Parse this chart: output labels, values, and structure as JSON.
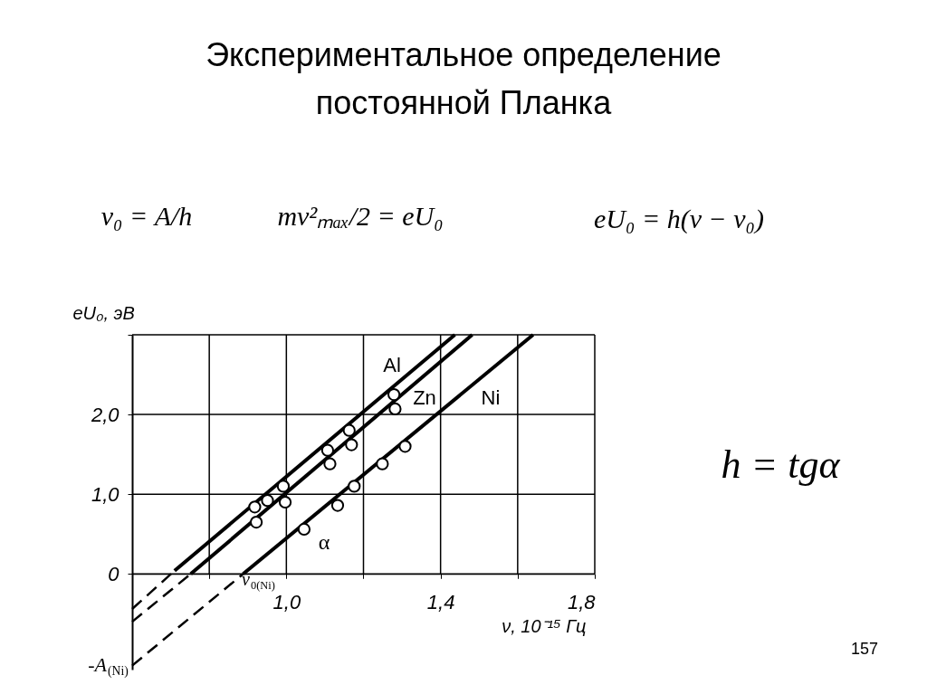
{
  "chart_data": {
    "type": "line",
    "title": "Экспериментальное определение постоянной Планка",
    "xlabel": "ν, 10⁻¹⁵ Гц",
    "ylabel": "eU₀, эВ",
    "xlim": [
      0.6,
      1.8
    ],
    "ylim": [
      -1.2,
      3.0
    ],
    "xticks": [
      {
        "value": 0.8,
        "label": null
      },
      {
        "value": 1.0,
        "label": "1,0"
      },
      {
        "value": 1.2,
        "label": null
      },
      {
        "value": 1.4,
        "label": "1,4"
      },
      {
        "value": 1.6,
        "label": null
      },
      {
        "value": 1.8,
        "label": "1,8"
      }
    ],
    "yticks": [
      {
        "value": 0,
        "label": "0"
      },
      {
        "value": 1.0,
        "label": "1,0"
      },
      {
        "value": 2.0,
        "label": "2,0"
      },
      {
        "value": 3.0,
        "label": null
      }
    ],
    "grid": true,
    "series": [
      {
        "color": "#000000",
        "line_style": "solid",
        "x": [
          0.71,
          1.437
        ],
        "values": [
          0.04,
          3.0
        ]
      },
      {
        "color": "#000000",
        "line_style": "dashed",
        "x": [
          0.6,
          0.71
        ],
        "values": [
          -0.44,
          0.04
        ]
      },
      {
        "color": "#000000",
        "line_style": "solid",
        "x": [
          0.752,
          1.482
        ],
        "values": [
          0.0,
          3.0
        ]
      },
      {
        "color": "#000000",
        "line_style": "dashed",
        "x": [
          0.6,
          0.752
        ],
        "values": [
          -0.6,
          0.0
        ]
      },
      {
        "color": "#000000",
        "line_style": "solid",
        "x": [
          0.888,
          1.64
        ],
        "values": [
          0.0,
          3.0
        ]
      },
      {
        "color": "#000000",
        "line_style": "dashed",
        "x": [
          0.6,
          0.888
        ],
        "values": [
          -1.15,
          0.0
        ]
      },
      {
        "type": "scatter",
        "color": "#000000",
        "marker": "circle",
        "x": [
          0.918,
          0.951,
          0.992,
          1.107,
          1.163,
          1.279
        ],
        "values": [
          0.84,
          0.92,
          1.1,
          1.55,
          1.8,
          2.25
        ]
      },
      {
        "type": "scatter",
        "color": "#000000",
        "marker": "circle",
        "x": [
          0.922,
          0.997,
          1.113,
          1.169,
          1.282
        ],
        "values": [
          0.65,
          0.9,
          1.38,
          1.62,
          2.07
        ]
      },
      {
        "type": "scatter",
        "color": "#000000",
        "marker": "circle",
        "x": [
          1.046,
          1.133,
          1.176,
          1.249,
          1.308
        ],
        "values": [
          0.56,
          0.86,
          1.1,
          1.38,
          1.6
        ]
      }
    ],
    "annotations": [
      "Al",
      "Zn",
      "Ni",
      "α",
      "ν$_{0(Ni)}$",
      "-A$_{(Ni)}$",
      "ν₀ = A/h",
      "mv²ₘₐₓ/2 = eU₀",
      "eU₀ = h(ν − ν₀)",
      "h = tgα",
      "157"
    ]
  }
}
